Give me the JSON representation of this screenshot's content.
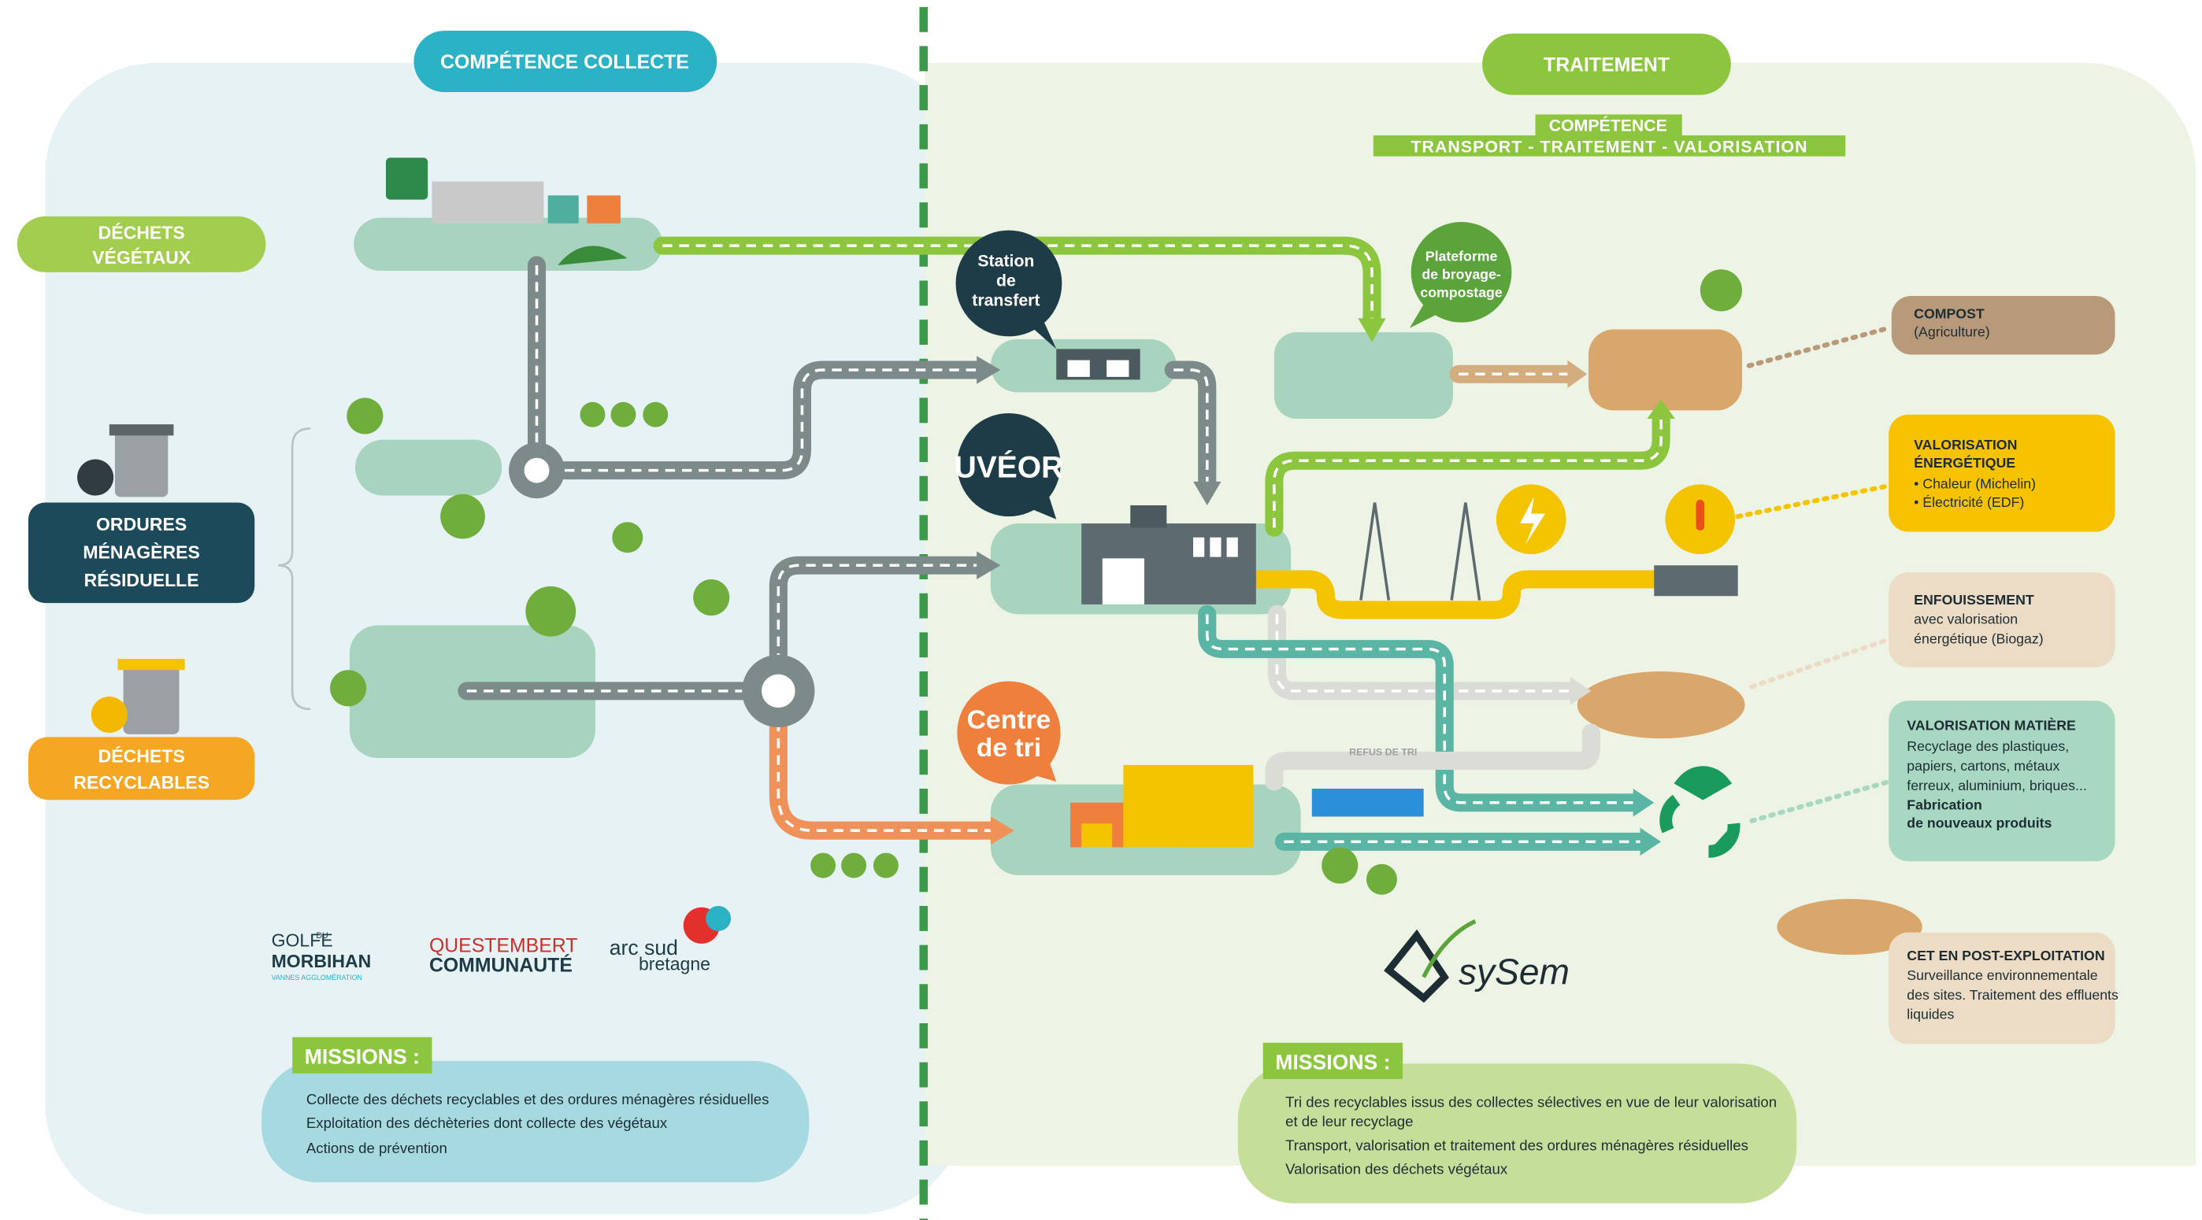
{
  "header": {
    "collecte": "COMPÉTENCE COLLECTE",
    "traitement": "TRAITEMENT",
    "competence": "COMPÉTENCE",
    "competence_detail": "TRANSPORT - TRAITEMENT - VALORISATION"
  },
  "sources": [
    {
      "lines": [
        "DÉCHETS",
        "VÉGÉTAUX"
      ]
    },
    {
      "lines": [
        "ORDURES",
        "MÉNAGÈRES",
        "RÉSIDUELLE"
      ]
    },
    {
      "lines": [
        "DÉCHETS",
        "RECYCLABLES"
      ]
    }
  ],
  "sites": {
    "station": [
      "Station",
      "de",
      "transfert"
    ],
    "plateforme": [
      "Plateforme",
      "de broyage-",
      "compostage"
    ],
    "uveor": "UVÉOR",
    "centre_tri": [
      "Centre",
      "de tri"
    ],
    "refus": "REFUS DE TRI"
  },
  "outputs": [
    {
      "title": [
        "COMPOST"
      ],
      "text": [
        "(Agriculture)"
      ]
    },
    {
      "title": [
        "VALORISATION",
        "ÉNERGÉTIQUE"
      ],
      "text": [
        "• Chaleur (Michelin)",
        "• Électricité (EDF)"
      ]
    },
    {
      "title": [
        "ENFOUISSEMENT"
      ],
      "text": [
        "avec valorisation",
        "énergétique (Biogaz)"
      ]
    },
    {
      "title": [
        "VALORISATION MATIÈRE"
      ],
      "text": [
        "Recyclage des plastiques,",
        "papiers, cartons, métaux",
        "ferreux, aluminium, briques..."
      ],
      "bold": [
        "Fabrication",
        "de nouveaux produits"
      ]
    },
    {
      "title": [
        "CET EN POST-EXPLOITATION"
      ],
      "text": [
        "Surveillance environnementale",
        "des sites. Traitement des effluents",
        "liquides"
      ]
    }
  ],
  "logos": {
    "golfe": [
      "GOLFE",
      "DU",
      "MORBIHAN",
      "VANNES AGGLOMÉRATION"
    ],
    "questembert": [
      "QUESTEMBERT",
      "COMMUNAUTÉ"
    ],
    "arc": [
      "arc sud",
      "bretagne"
    ],
    "sysem": "sySem"
  },
  "missions_left": {
    "title": "MISSIONS :",
    "items": [
      "Collecte des déchets recyclables et des ordures ménagères résiduelles",
      "Exploitation des déchèteries dont collecte des végétaux",
      "Actions de prévention"
    ]
  },
  "missions_right": {
    "title": "MISSIONS :",
    "items": [
      [
        "Tri des recyclables issus des collectes sélectives en vue de leur valorisation",
        "et de leur recyclage"
      ],
      [
        "Transport, valorisation et traitement des ordures ménagères résiduelles"
      ],
      [
        "Valorisation des déchets végétaux"
      ]
    ]
  }
}
